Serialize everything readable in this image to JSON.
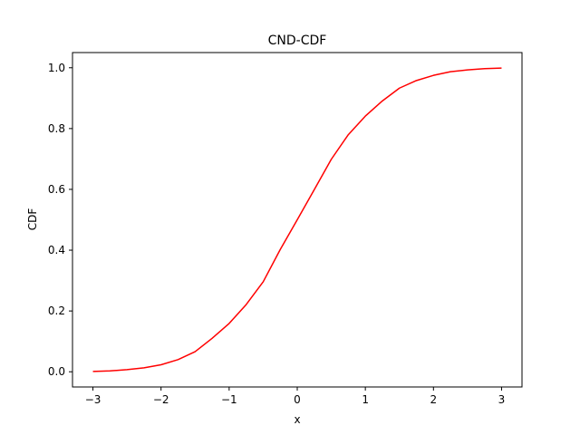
{
  "chart_data": {
    "type": "line",
    "title": "CND-CDF",
    "xlabel": "x",
    "ylabel": "CDF",
    "xlim": [
      -3.3,
      3.3
    ],
    "ylim": [
      -0.05,
      1.05
    ],
    "xticks": [
      -3,
      -2,
      -1,
      0,
      1,
      2,
      3
    ],
    "xtick_labels": [
      "−3",
      "−2",
      "−1",
      "0",
      "1",
      "2",
      "3"
    ],
    "yticks": [
      0.0,
      0.2,
      0.4,
      0.6,
      0.8,
      1.0
    ],
    "ytick_labels": [
      "0.0",
      "0.2",
      "0.4",
      "0.6",
      "0.8",
      "1.0"
    ],
    "grid": false,
    "series": [
      {
        "name": "CND-CDF",
        "color": "#ff0000",
        "x": [
          -3.0,
          -2.75,
          -2.5,
          -2.25,
          -2.0,
          -1.75,
          -1.5,
          -1.25,
          -1.0,
          -0.75,
          -0.5,
          -0.25,
          0.0,
          0.25,
          0.5,
          0.75,
          1.0,
          1.25,
          1.5,
          1.75,
          2.0,
          2.25,
          2.5,
          2.75,
          3.0
        ],
        "y": [
          0.001,
          0.003,
          0.007,
          0.013,
          0.023,
          0.04,
          0.066,
          0.11,
          0.159,
          0.221,
          0.296,
          0.402,
          0.5,
          0.599,
          0.699,
          0.78,
          0.841,
          0.891,
          0.933,
          0.958,
          0.975,
          0.987,
          0.993,
          0.997,
          0.999
        ]
      }
    ]
  }
}
